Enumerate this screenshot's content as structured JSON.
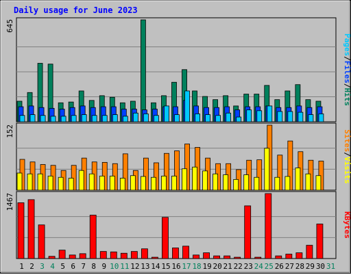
{
  "chart_data": {
    "type": "bar",
    "title": "Daily usage for June 2023",
    "days": [
      "1",
      "2",
      "3",
      "4",
      "5",
      "6",
      "7",
      "8",
      "9",
      "10",
      "11",
      "12",
      "13",
      "14",
      "15",
      "16",
      "17",
      "18",
      "19",
      "20",
      "21",
      "22",
      "23",
      "24",
      "25",
      "26",
      "27",
      "28",
      "29",
      "30",
      "31"
    ],
    "weekend_days": [
      "3",
      "4",
      "10",
      "11",
      "17",
      "18",
      "24",
      "25",
      "31"
    ],
    "panels": [
      {
        "id": "hits-files-pages",
        "max_label": "645",
        "ymax": 645,
        "series": [
          {
            "name": "Hits",
            "color": "#00805c",
            "values": [
              130,
              185,
              370,
              365,
              120,
              125,
              195,
              135,
              165,
              155,
              120,
              130,
              645,
              120,
              165,
              250,
              330,
              195,
              160,
              140,
              165,
              100,
              175,
              175,
              230,
              140,
              195,
              235,
              140,
              130,
              0
            ]
          },
          {
            "name": "Files",
            "color": "#0040ff",
            "values": [
              95,
              100,
              90,
              85,
              80,
              90,
              100,
              90,
              95,
              95,
              80,
              80,
              75,
              80,
              95,
              95,
              135,
              100,
              90,
              90,
              95,
              75,
              95,
              95,
              100,
              90,
              90,
              100,
              90,
              95,
              0
            ]
          },
          {
            "name": "Pages",
            "color": "#00c8ff",
            "values": [
              40,
              45,
              40,
              35,
              35,
              40,
              45,
              40,
              40,
              45,
              35,
              55,
              50,
              40,
              100,
              45,
              195,
              50,
              45,
              40,
              55,
              30,
              75,
              70,
              100,
              65,
              65,
              60,
              45,
              50,
              0
            ]
          }
        ],
        "legend": [
          "Pages",
          "/",
          "Files",
          "/",
          "Hits"
        ],
        "legend_colors": [
          "#00c8ff",
          "#000000",
          "#0040ff",
          "#000000",
          "#00805c"
        ]
      },
      {
        "id": "visits-sites",
        "max_label": "152",
        "ymax": 152,
        "series": [
          {
            "name": "Sites",
            "color": "#ff8000",
            "values": [
              72,
              66,
              60,
              58,
              46,
              58,
              75,
              66,
              65,
              62,
              85,
              46,
              75,
              64,
              86,
              92,
              108,
              100,
              75,
              62,
              62,
              48,
              70,
              71,
              152,
              82,
              115,
              90,
              70,
              68,
              0
            ]
          },
          {
            "name": "Visits",
            "color": "#ffff00",
            "values": [
              40,
              38,
              38,
              33,
              30,
              28,
              46,
              38,
              33,
              33,
              28,
              34,
              32,
              30,
              33,
              33,
              50,
              54,
              45,
              38,
              36,
              25,
              36,
              30,
              98,
              30,
              32,
              52,
              38,
              34,
              0
            ]
          }
        ],
        "legend": [
          "Sites",
          "/",
          "Visits"
        ],
        "legend_colors": [
          "#ff8000",
          "#000000",
          "#ffff00"
        ]
      },
      {
        "id": "kbytes",
        "max_label": "1467",
        "ymax": 1467,
        "series": [
          {
            "name": "KBytes",
            "color": "#ff0000",
            "values": [
              1260,
              1330,
              760,
              50,
              190,
              80,
              110,
              980,
              160,
              150,
              120,
              160,
              220,
              30,
              930,
              240,
              280,
              80,
              130,
              60,
              60,
              30,
              1190,
              30,
              1467,
              60,
              100,
              130,
              300,
              780,
              0
            ]
          }
        ],
        "legend": [
          "KBytes"
        ],
        "legend_colors": [
          "#ff0000"
        ]
      }
    ]
  }
}
